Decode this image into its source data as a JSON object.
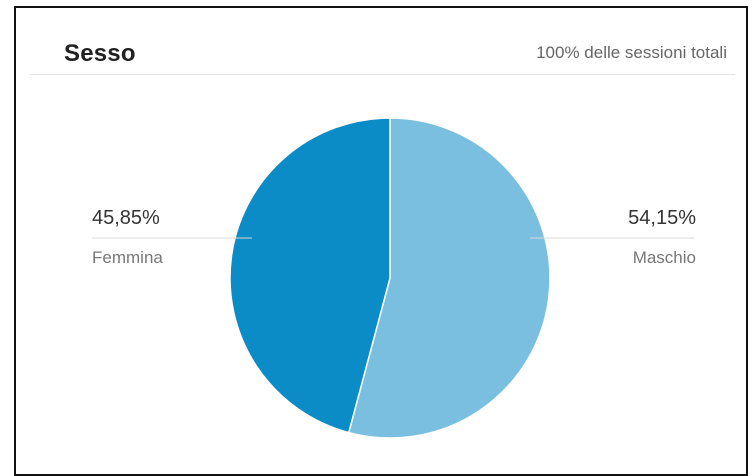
{
  "card": {
    "title": "Sesso",
    "subtitle": "100% delle sessioni totali"
  },
  "chart_data": {
    "type": "pie",
    "title": "Sesso",
    "subtitle": "100% delle sessioni totali",
    "slices": [
      {
        "label": "Maschio",
        "value": 54.15,
        "display": "54,15%",
        "color": "#7bbfe0"
      },
      {
        "label": "Femmina",
        "value": 45.85,
        "display": "45,85%",
        "color": "#0b8cc6"
      }
    ]
  }
}
